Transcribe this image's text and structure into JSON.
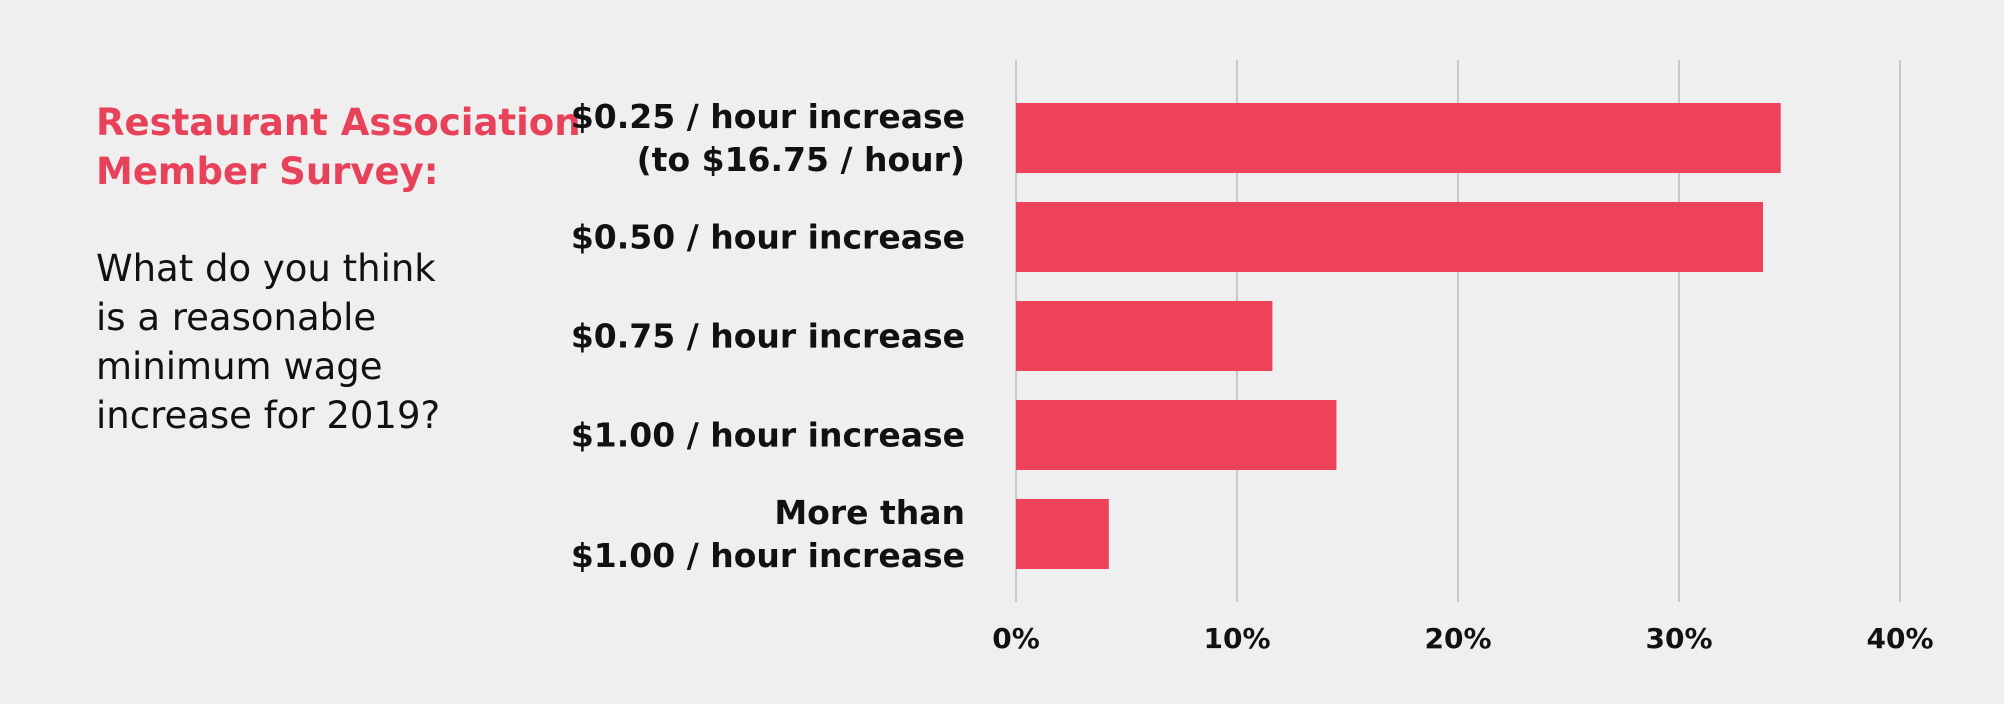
{
  "chart_data": {
    "type": "bar",
    "orientation": "horizontal",
    "title": "Restaurant Association\nMember Survey:",
    "subtitle": "What do you think\nis a reasonable\nminimum wage\nincrease for 2019?",
    "categories": [
      "$0.25 / hour increase\n(to $16.75 / hour)",
      "$0.50 / hour increase",
      "$0.75 / hour increase",
      "$1.00 / hour increase",
      "More than\n$1.00 / hour increase"
    ],
    "values": [
      34.6,
      33.8,
      11.6,
      14.5,
      4.2
    ],
    "color": "#ee4259",
    "xlim": [
      0,
      40
    ],
    "xticks": [
      {
        "value": 0,
        "label": "0%"
      },
      {
        "value": 10,
        "label": "10%"
      },
      {
        "value": 20,
        "label": "20%"
      },
      {
        "value": 30,
        "label": "30%"
      },
      {
        "value": 40,
        "label": "40%"
      }
    ],
    "grid": true
  }
}
